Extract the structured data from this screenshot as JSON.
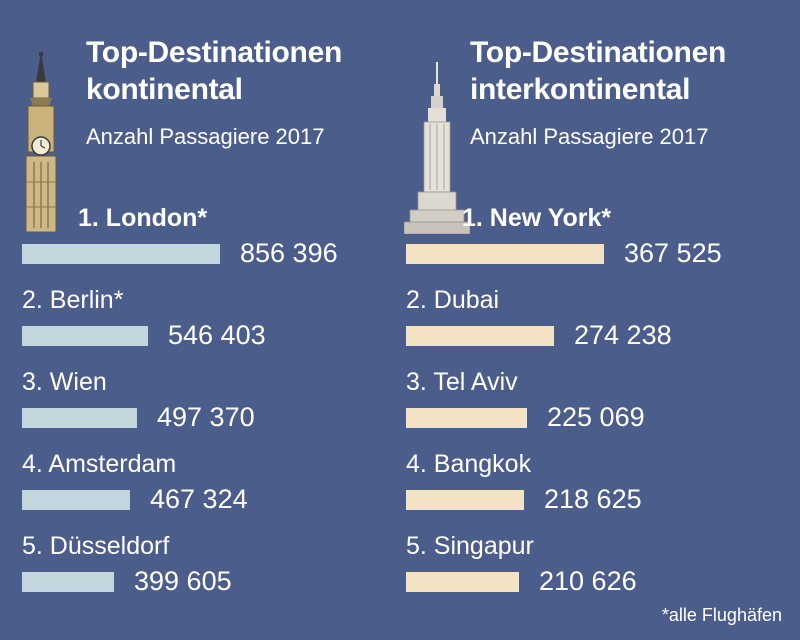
{
  "colors": {
    "background": "#4b5d8a",
    "bar_continental": "#c4d6dd",
    "bar_intercontinental": "#f3e3c4",
    "text": "#ffffff"
  },
  "chart_data": [
    {
      "type": "bar",
      "orientation": "horizontal",
      "title": "Top-Destinationen kontinental",
      "title_lines": [
        "Top-Destinationen",
        "kontinental"
      ],
      "subtitle": "Anzahl Passagiere 2017",
      "icon": "big-ben-icon",
      "categories": [
        "1. London*",
        "2. Berlin*",
        "3. Wien",
        "4.   Amsterdam",
        "5. Düsseldorf"
      ],
      "values": [
        856396,
        546403,
        497370,
        467324,
        399605
      ],
      "value_labels": [
        "856 396",
        "546 403",
        "497 370",
        "467 324",
        "399 605"
      ],
      "xlim": [
        0,
        856396
      ]
    },
    {
      "type": "bar",
      "orientation": "horizontal",
      "title": "Top-Destinationen interkontinental",
      "title_lines": [
        "Top-Destinationen",
        "interkontinental"
      ],
      "subtitle": "Anzahl Passagiere 2017",
      "icon": "empire-state-building-icon",
      "categories": [
        "1. New York*",
        "2. Dubai",
        "3. Tel Aviv",
        "4. Bangkok",
        "5. Singapur"
      ],
      "values": [
        367525,
        274238,
        225069,
        218625,
        210626
      ],
      "value_labels": [
        "367 525",
        "274 238",
        "225 069",
        "218 625",
        "210 626"
      ],
      "xlim": [
        0,
        367525
      ]
    }
  ],
  "footnote": "*alle Flughäfen"
}
